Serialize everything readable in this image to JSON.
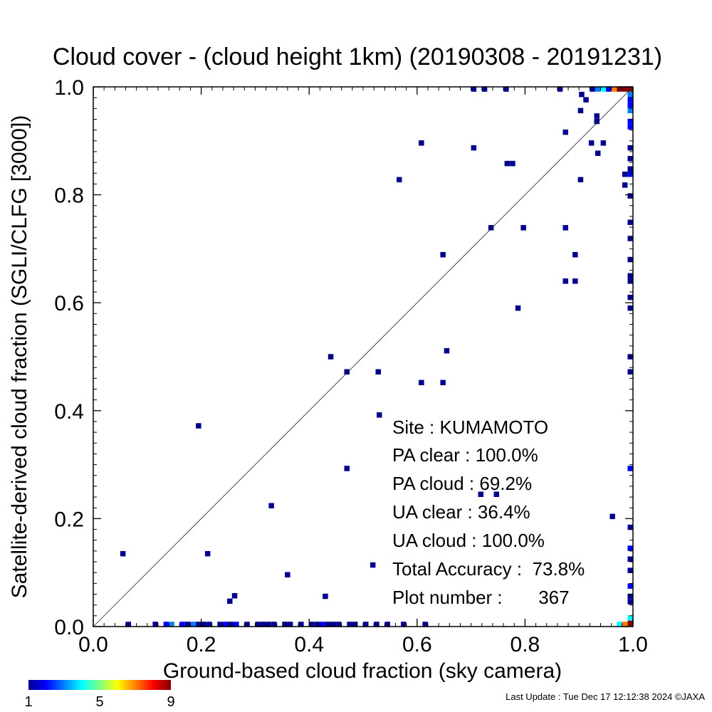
{
  "chart_data": {
    "type": "heatmap",
    "title": "Cloud cover - (cloud height 1km)  (20190308 - 20191231)",
    "xlabel": "Ground-based cloud fraction (sky camera)",
    "ylabel": "Satellite-derived cloud fraction (SGLI/CLFG [3000])",
    "xlim": [
      0.0,
      1.0
    ],
    "ylim": [
      0.0,
      1.0
    ],
    "x_ticks": [
      "0.0",
      "0.2",
      "0.4",
      "0.6",
      "0.8",
      "1.0"
    ],
    "y_ticks": [
      "0.0",
      "0.2",
      "0.4",
      "0.6",
      "0.8",
      "1.0"
    ],
    "reference_line": "1:1 diagonal",
    "colorbar": {
      "min": 1,
      "max": 9,
      "tick_labels": [
        "1",
        "5",
        "9"
      ]
    },
    "points": [
      {
        "x": 0.055,
        "y": 0.135,
        "count": 1
      },
      {
        "x": 0.195,
        "y": 0.372,
        "count": 1
      },
      {
        "x": 0.212,
        "y": 0.135,
        "count": 1
      },
      {
        "x": 0.253,
        "y": 0.047,
        "count": 1
      },
      {
        "x": 0.262,
        "y": 0.057,
        "count": 1
      },
      {
        "x": 0.33,
        "y": 0.224,
        "count": 1
      },
      {
        "x": 0.36,
        "y": 0.096,
        "count": 1
      },
      {
        "x": 0.43,
        "y": 0.056,
        "count": 1
      },
      {
        "x": 0.44,
        "y": 0.5,
        "count": 1
      },
      {
        "x": 0.47,
        "y": 0.293,
        "count": 1
      },
      {
        "x": 0.47,
        "y": 0.472,
        "count": 1
      },
      {
        "x": 0.518,
        "y": 0.114,
        "count": 1
      },
      {
        "x": 0.528,
        "y": 0.472,
        "count": 1
      },
      {
        "x": 0.53,
        "y": 0.392,
        "count": 1
      },
      {
        "x": 0.567,
        "y": 0.828,
        "count": 1
      },
      {
        "x": 0.608,
        "y": 0.896,
        "count": 1
      },
      {
        "x": 0.608,
        "y": 0.452,
        "count": 1
      },
      {
        "x": 0.648,
        "y": 0.689,
        "count": 1
      },
      {
        "x": 0.648,
        "y": 0.452,
        "count": 1
      },
      {
        "x": 0.655,
        "y": 0.511,
        "count": 1
      },
      {
        "x": 0.705,
        "y": 0.887,
        "count": 1
      },
      {
        "x": 0.718,
        "y": 0.245,
        "count": 1
      },
      {
        "x": 0.737,
        "y": 0.739,
        "count": 1
      },
      {
        "x": 0.747,
        "y": 0.245,
        "count": 1
      },
      {
        "x": 0.767,
        "y": 0.858,
        "count": 1
      },
      {
        "x": 0.777,
        "y": 0.858,
        "count": 1
      },
      {
        "x": 0.787,
        "y": 0.59,
        "count": 1
      },
      {
        "x": 0.797,
        "y": 0.739,
        "count": 1
      },
      {
        "x": 0.875,
        "y": 0.916,
        "count": 1
      },
      {
        "x": 0.875,
        "y": 0.739,
        "count": 1
      },
      {
        "x": 0.875,
        "y": 0.64,
        "count": 1
      },
      {
        "x": 0.893,
        "y": 0.689,
        "count": 1
      },
      {
        "x": 0.893,
        "y": 0.64,
        "count": 1
      },
      {
        "x": 0.903,
        "y": 0.956,
        "count": 1
      },
      {
        "x": 0.903,
        "y": 0.828,
        "count": 1
      },
      {
        "x": 0.905,
        "y": 0.986,
        "count": 1
      },
      {
        "x": 0.913,
        "y": 0.976,
        "count": 1
      },
      {
        "x": 0.923,
        "y": 0.896,
        "count": 1
      },
      {
        "x": 0.933,
        "y": 0.946,
        "count": 1
      },
      {
        "x": 0.933,
        "y": 0.936,
        "count": 1
      },
      {
        "x": 0.935,
        "y": 0.877,
        "count": 1
      },
      {
        "x": 0.945,
        "y": 0.896,
        "count": 1
      },
      {
        "x": 0.962,
        "y": 0.204,
        "count": 1
      },
      {
        "x": 0.705,
        "y": 0.996,
        "count": 1
      },
      {
        "x": 0.725,
        "y": 0.996,
        "count": 1
      },
      {
        "x": 0.765,
        "y": 0.996,
        "count": 1
      },
      {
        "x": 0.865,
        "y": 0.996,
        "count": 1
      },
      {
        "x": 0.925,
        "y": 0.996,
        "count": 1
      },
      {
        "x": 0.935,
        "y": 0.996,
        "count": 3
      },
      {
        "x": 0.945,
        "y": 0.996,
        "count": 4
      },
      {
        "x": 0.955,
        "y": 0.996,
        "count": 2
      },
      {
        "x": 0.965,
        "y": 0.996,
        "count": 7
      },
      {
        "x": 0.975,
        "y": 0.996,
        "count": 9
      },
      {
        "x": 0.985,
        "y": 0.996,
        "count": 9
      },
      {
        "x": 0.995,
        "y": 0.996,
        "count": 9
      },
      {
        "x": 0.985,
        "y": 0.838,
        "count": 1
      },
      {
        "x": 0.985,
        "y": 0.818,
        "count": 1
      },
      {
        "x": 0.995,
        "y": 0.986,
        "count": 3
      },
      {
        "x": 0.995,
        "y": 0.976,
        "count": 2
      },
      {
        "x": 0.995,
        "y": 0.966,
        "count": 2
      },
      {
        "x": 0.995,
        "y": 0.956,
        "count": 3
      },
      {
        "x": 0.995,
        "y": 0.936,
        "count": 2
      },
      {
        "x": 0.995,
        "y": 0.926,
        "count": 2
      },
      {
        "x": 0.995,
        "y": 0.887,
        "count": 1
      },
      {
        "x": 0.995,
        "y": 0.867,
        "count": 1
      },
      {
        "x": 0.995,
        "y": 0.848,
        "count": 1
      },
      {
        "x": 0.995,
        "y": 0.838,
        "count": 2
      },
      {
        "x": 0.995,
        "y": 0.798,
        "count": 1
      },
      {
        "x": 0.995,
        "y": 0.749,
        "count": 1
      },
      {
        "x": 0.995,
        "y": 0.719,
        "count": 1
      },
      {
        "x": 0.995,
        "y": 0.68,
        "count": 1
      },
      {
        "x": 0.995,
        "y": 0.65,
        "count": 1
      },
      {
        "x": 0.995,
        "y": 0.64,
        "count": 1
      },
      {
        "x": 0.995,
        "y": 0.61,
        "count": 1
      },
      {
        "x": 0.995,
        "y": 0.59,
        "count": 1
      },
      {
        "x": 0.995,
        "y": 0.5,
        "count": 1
      },
      {
        "x": 0.995,
        "y": 0.472,
        "count": 1
      },
      {
        "x": 0.995,
        "y": 0.293,
        "count": 2
      },
      {
        "x": 0.995,
        "y": 0.184,
        "count": 1
      },
      {
        "x": 0.995,
        "y": 0.145,
        "count": 2
      },
      {
        "x": 0.995,
        "y": 0.125,
        "count": 1
      },
      {
        "x": 0.995,
        "y": 0.104,
        "count": 1
      },
      {
        "x": 0.995,
        "y": 0.075,
        "count": 2
      },
      {
        "x": 0.995,
        "y": 0.056,
        "count": 1
      },
      {
        "x": 0.995,
        "y": 0.046,
        "count": 1
      },
      {
        "x": 0.995,
        "y": 0.016,
        "count": 4
      },
      {
        "x": 0.995,
        "y": 0.006,
        "count": 9
      },
      {
        "x": 0.065,
        "y": 0.004,
        "count": 1
      },
      {
        "x": 0.115,
        "y": 0.004,
        "count": 1
      },
      {
        "x": 0.135,
        "y": 0.004,
        "count": 2
      },
      {
        "x": 0.145,
        "y": 0.004,
        "count": 3
      },
      {
        "x": 0.165,
        "y": 0.004,
        "count": 2
      },
      {
        "x": 0.175,
        "y": 0.004,
        "count": 1
      },
      {
        "x": 0.185,
        "y": 0.004,
        "count": 3
      },
      {
        "x": 0.195,
        "y": 0.004,
        "count": 1
      },
      {
        "x": 0.205,
        "y": 0.004,
        "count": 1
      },
      {
        "x": 0.215,
        "y": 0.004,
        "count": 1
      },
      {
        "x": 0.235,
        "y": 0.004,
        "count": 1
      },
      {
        "x": 0.245,
        "y": 0.004,
        "count": 2
      },
      {
        "x": 0.255,
        "y": 0.004,
        "count": 1
      },
      {
        "x": 0.265,
        "y": 0.004,
        "count": 2
      },
      {
        "x": 0.285,
        "y": 0.004,
        "count": 1
      },
      {
        "x": 0.305,
        "y": 0.004,
        "count": 1
      },
      {
        "x": 0.315,
        "y": 0.004,
        "count": 1
      },
      {
        "x": 0.325,
        "y": 0.004,
        "count": 1
      },
      {
        "x": 0.335,
        "y": 0.004,
        "count": 1
      },
      {
        "x": 0.355,
        "y": 0.004,
        "count": 1
      },
      {
        "x": 0.365,
        "y": 0.004,
        "count": 1
      },
      {
        "x": 0.385,
        "y": 0.004,
        "count": 1
      },
      {
        "x": 0.405,
        "y": 0.004,
        "count": 1
      },
      {
        "x": 0.415,
        "y": 0.004,
        "count": 1
      },
      {
        "x": 0.425,
        "y": 0.004,
        "count": 2
      },
      {
        "x": 0.435,
        "y": 0.004,
        "count": 1
      },
      {
        "x": 0.445,
        "y": 0.004,
        "count": 1
      },
      {
        "x": 0.455,
        "y": 0.004,
        "count": 1
      },
      {
        "x": 0.475,
        "y": 0.004,
        "count": 1
      },
      {
        "x": 0.485,
        "y": 0.004,
        "count": 1
      },
      {
        "x": 0.505,
        "y": 0.004,
        "count": 1
      },
      {
        "x": 0.525,
        "y": 0.004,
        "count": 1
      },
      {
        "x": 0.545,
        "y": 0.004,
        "count": 1
      },
      {
        "x": 0.575,
        "y": 0.004,
        "count": 1
      },
      {
        "x": 0.615,
        "y": 0.004,
        "count": 1
      },
      {
        "x": 0.975,
        "y": 0.004,
        "count": 4
      },
      {
        "x": 0.985,
        "y": 0.004,
        "count": 7
      }
    ],
    "annotations": {
      "site": "Site : KUMAMOTO",
      "pa_clear": "PA clear : 100.0%",
      "pa_cloud": "PA cloud :  69.2%",
      "ua_clear": "UA clear :  36.4%",
      "ua_cloud": "UA cloud : 100.0%",
      "total_accuracy": "Total Accuracy :  73.8%",
      "plot_number": "Plot number :       367"
    }
  },
  "footer": {
    "last_update": "Last Update : Tue Dec 17 12:12:38 2024  ©JAXA"
  }
}
